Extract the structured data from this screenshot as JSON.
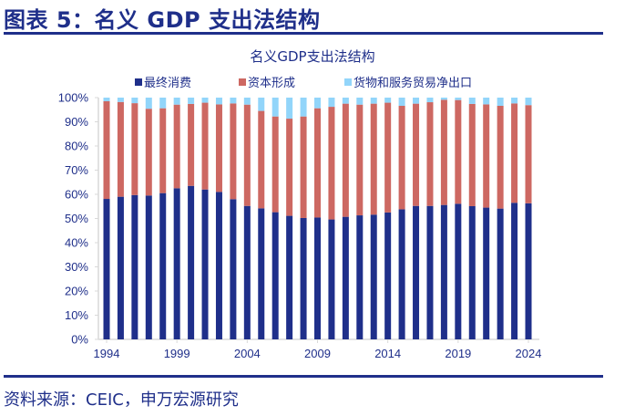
{
  "figure": {
    "title": "图表 5：名义 GDP 支出法结构",
    "source": "资料来源：CEIC，申万宏源研究"
  },
  "chart_data": {
    "type": "bar",
    "stacked": true,
    "percent_stacked": true,
    "title": "名义GDP支出法结构",
    "xlabel": "",
    "ylabel": "",
    "ylim": [
      0,
      100
    ],
    "y_ticks": [
      "0%",
      "10%",
      "20%",
      "30%",
      "40%",
      "50%",
      "60%",
      "70%",
      "80%",
      "90%",
      "100%"
    ],
    "x_tick_labels": [
      "1994",
      "1999",
      "2004",
      "2009",
      "2014",
      "2019",
      "2024"
    ],
    "legend_position": "top-center",
    "grid": false,
    "categories": [
      "1994",
      "1995",
      "1996",
      "1997",
      "1998",
      "1999",
      "2000",
      "2001",
      "2002",
      "2003",
      "2004",
      "2005",
      "2006",
      "2007",
      "2008",
      "2009",
      "2010",
      "2011",
      "2012",
      "2013",
      "2014",
      "2015",
      "2016",
      "2017",
      "2018",
      "2019",
      "2020",
      "2021",
      "2022",
      "2023",
      "2024"
    ],
    "series": [
      {
        "name": "最终消费",
        "color": "#1f2f8a",
        "values": [
          58.1,
          59.0,
          59.7,
          59.5,
          60.5,
          62.5,
          63.5,
          62.0,
          61.0,
          58.0,
          55.2,
          54.2,
          52.6,
          51.1,
          50.2,
          50.4,
          49.6,
          50.7,
          51.3,
          51.6,
          52.5,
          53.8,
          55.2,
          55.2,
          55.6,
          56.1,
          55.1,
          54.5,
          54.1,
          56.5,
          56.3
        ]
      },
      {
        "name": "资本形成",
        "color": "#cd6862",
        "values": [
          40.4,
          39.2,
          38.0,
          35.9,
          35.1,
          34.6,
          33.9,
          35.9,
          36.2,
          39.6,
          41.9,
          40.3,
          39.6,
          40.2,
          42.0,
          45.2,
          46.6,
          46.8,
          45.8,
          45.9,
          45.4,
          42.8,
          42.3,
          42.9,
          43.5,
          42.9,
          42.3,
          42.7,
          42.5,
          41.1,
          40.6
        ]
      },
      {
        "name": "货物和服务贸易净出口",
        "color": "#92d5fa",
        "values": [
          1.5,
          1.8,
          2.3,
          4.6,
          4.4,
          2.9,
          2.6,
          2.1,
          2.8,
          2.4,
          2.9,
          5.5,
          7.8,
          8.7,
          7.8,
          4.4,
          3.8,
          2.5,
          2.9,
          2.5,
          2.1,
          3.4,
          2.5,
          1.9,
          0.9,
          1.0,
          2.6,
          2.8,
          3.4,
          2.4,
          3.1
        ]
      }
    ]
  }
}
